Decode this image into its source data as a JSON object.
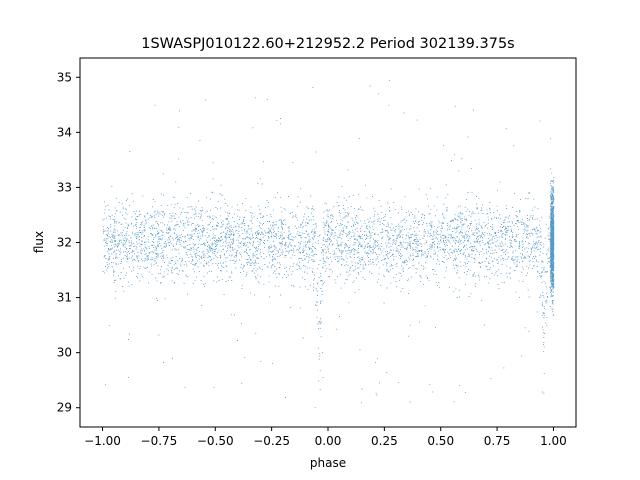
{
  "chart_data": {
    "type": "scatter",
    "title": "1SWASPJ010122.60+212952.2 Period 302139.375s",
    "xlabel": "phase",
    "ylabel": "flux",
    "xlim": [
      -1.1,
      1.1
    ],
    "ylim": [
      28.65,
      35.35
    ],
    "xticks": [
      -1.0,
      -0.75,
      -0.5,
      -0.25,
      0.0,
      0.25,
      0.5,
      0.75,
      1.0
    ],
    "xtick_labels": [
      "−1.00",
      "−0.75",
      "−0.50",
      "−0.25",
      "0.00",
      "0.25",
      "0.50",
      "0.75",
      "1.00"
    ],
    "yticks": [
      29,
      30,
      31,
      32,
      33,
      34,
      35
    ],
    "ytick_labels": [
      "29",
      "30",
      "31",
      "32",
      "33",
      "34",
      "35"
    ],
    "grid": false,
    "marker_color": "#1f77b4",
    "series": [
      {
        "x_range": [
          -1.0,
          1.0
        ],
        "baseline_flux": 32.0,
        "scatter_sigma": 0.35,
        "outlier_range": [
          29.0,
          35.0
        ],
        "eclipse_phases": [
          -0.04,
          0.96
        ],
        "eclipse_min_flux": 29.0
      }
    ]
  }
}
